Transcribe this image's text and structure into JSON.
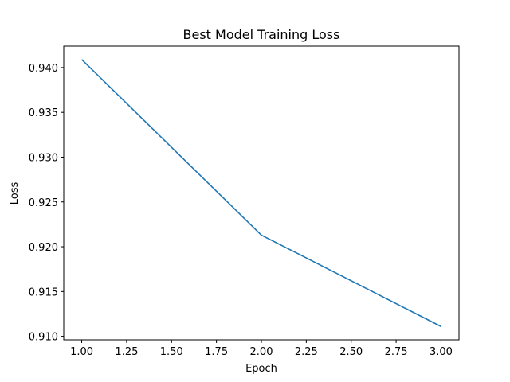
{
  "chart_data": {
    "type": "line",
    "title": "Best Model Training Loss",
    "xlabel": "Epoch",
    "ylabel": "Loss",
    "x": [
      1.0,
      2.0,
      3.0
    ],
    "series": [
      {
        "values": [
          0.9409,
          0.9213,
          0.9111
        ],
        "color": "#1f77b4"
      }
    ],
    "xlim": [
      0.9,
      3.1
    ],
    "ylim": [
      0.90961,
      0.94239
    ],
    "xticks": [
      1.0,
      1.25,
      1.5,
      1.75,
      2.0,
      2.25,
      2.5,
      2.75,
      3.0
    ],
    "xtick_labels": [
      "1.00",
      "1.25",
      "1.50",
      "1.75",
      "2.00",
      "2.25",
      "2.50",
      "2.75",
      "3.00"
    ],
    "yticks": [
      0.91,
      0.915,
      0.92,
      0.925,
      0.93,
      0.935,
      0.94
    ],
    "ytick_labels": [
      "0.910",
      "0.915",
      "0.920",
      "0.925",
      "0.930",
      "0.935",
      "0.940"
    ],
    "grid": false,
    "legend": "none"
  }
}
